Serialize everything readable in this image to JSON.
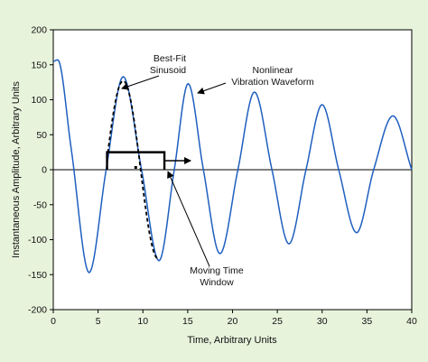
{
  "chart_data": {
    "type": "line",
    "title": "",
    "xlabel": "Time, Arbitrary Units",
    "ylabel": "Instantaneous Amplitude, Arbitrary Units",
    "xlim": [
      0,
      40
    ],
    "ylim": [
      -200,
      200
    ],
    "x_ticks": [
      0,
      5,
      10,
      15,
      20,
      25,
      30,
      35,
      40
    ],
    "y_ticks": [
      -200,
      -150,
      -100,
      -50,
      0,
      50,
      100,
      150,
      200
    ],
    "grid": false,
    "legend": "none",
    "series": [
      {
        "name": "Nonlinear Vibration Waveform",
        "style": "solid",
        "color": "#1f5fbf",
        "x": [
          0,
          0.5,
          2,
          4.0,
          5.9,
          7.8,
          9.85,
          11.8,
          13.5,
          15.05,
          16.75,
          18.6,
          20.6,
          22.45,
          24.4,
          26.3,
          28.2,
          30.0,
          31.85,
          33.85,
          35.75,
          37.9,
          40
        ],
        "y": [
          155,
          157,
          30,
          -147,
          0,
          133,
          0,
          -130,
          0,
          123,
          0,
          -120,
          0,
          111,
          0,
          -106,
          0,
          93,
          0,
          -90,
          0,
          77,
          0
        ]
      },
      {
        "name": "Best-Fit Sinusoid",
        "style": "dashed",
        "color": "#000000",
        "x_range": [
          6.0,
          11.8
        ],
        "amplitude": 127,
        "period": 7.8,
        "phase_zero": 5.85
      }
    ],
    "annotations": [
      {
        "text": [
          "Best-Fit",
          "Sinusoid"
        ]
      },
      {
        "text": [
          "Nonlinear",
          "Vibration Waveform"
        ]
      },
      {
        "text": [
          "Moving Time",
          "Window"
        ]
      }
    ],
    "window": {
      "x_start": 6.0,
      "x_end": 12.4,
      "height": 25
    }
  }
}
